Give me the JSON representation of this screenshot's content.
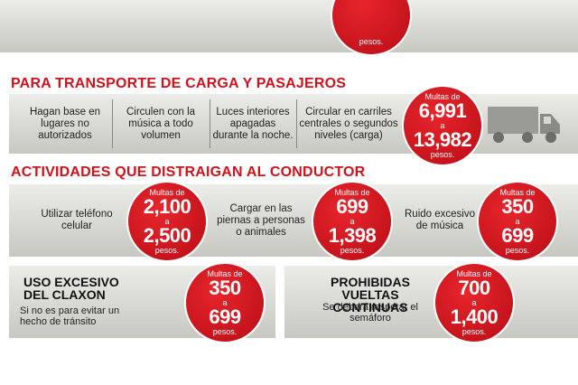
{
  "top_badge": {
    "unit": "pesos."
  },
  "sections": [
    {
      "title": "PARA TRANSPORTE DE CARGA Y PASAJEROS",
      "items": [
        "Hagan base en lugares no autorizados",
        "Circulen con la música a todo volumen",
        "Luces interiores apagadas durante la noche.",
        "Circular en carriles centrales o segundos niveles (carga)"
      ],
      "fine": {
        "label": "Multas de",
        "min": "6,991",
        "connector": "a",
        "max": "13,982",
        "unit": "pesos."
      }
    },
    {
      "title": "ACTIVIDADES QUE DISTRAIGAN AL CONDUCTOR",
      "items": [
        {
          "text": "Utilizar teléfono celular",
          "fine": {
            "label": "Multas de",
            "min": "2,100",
            "connector": "a",
            "max": "2,500",
            "unit": "pesos."
          }
        },
        {
          "text": "Cargar en las piernas a personas o animales",
          "fine": {
            "label": "Multas de",
            "min": "699",
            "connector": "a",
            "max": "1,398",
            "unit": "pesos."
          }
        },
        {
          "text": "Ruido excesivo de música",
          "fine": {
            "label": "Multas de",
            "min": "350",
            "connector": "a",
            "max": "699",
            "unit": "pesos."
          }
        }
      ]
    },
    {
      "panels": [
        {
          "title": "USO EXCESIVO DEL CLAXON",
          "note": "Si no es para evitar un hecho de tránsito",
          "fine": {
            "label": "Multas de",
            "min": "350",
            "connector": "a",
            "max": "699",
            "unit": "pesos."
          }
        },
        {
          "title": "PROHIBIDAS VUELTAS CONTINUAS",
          "note": "Se deberá respetar el semáforo",
          "fine": {
            "label": "Multas de",
            "min": "700",
            "connector": "a",
            "max": "1,400",
            "unit": "pesos."
          }
        }
      ]
    }
  ]
}
